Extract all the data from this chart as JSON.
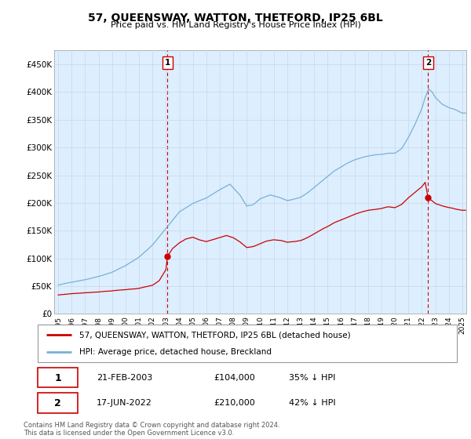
{
  "title": "57, QUEENSWAY, WATTON, THETFORD, IP25 6BL",
  "subtitle": "Price paid vs. HM Land Registry's House Price Index (HPI)",
  "hpi_color": "#7ab0d4",
  "property_color": "#cc0000",
  "marker_color": "#cc0000",
  "ylabel_ticks": [
    0,
    50000,
    100000,
    150000,
    200000,
    250000,
    300000,
    350000,
    400000,
    450000
  ],
  "ylabel_labels": [
    "£0",
    "£50K",
    "£100K",
    "£150K",
    "£200K",
    "£250K",
    "£300K",
    "£350K",
    "£400K",
    "£450K"
  ],
  "xlim_start": 1994.7,
  "xlim_end": 2025.3,
  "ylim_min": 0,
  "ylim_max": 475000,
  "marker1_year": 2003.12,
  "marker1_value": 104000,
  "marker1_label": "1",
  "marker1_date": "21-FEB-2003",
  "marker1_price": "£104,000",
  "marker1_hpi": "35% ↓ HPI",
  "marker2_year": 2022.46,
  "marker2_value": 210000,
  "marker2_label": "2",
  "marker2_date": "17-JUN-2022",
  "marker2_price": "£210,000",
  "marker2_hpi": "42% ↓ HPI",
  "legend_line1": "57, QUEENSWAY, WATTON, THETFORD, IP25 6BL (detached house)",
  "legend_line2": "HPI: Average price, detached house, Breckland",
  "footnote": "Contains HM Land Registry data © Crown copyright and database right 2024.\nThis data is licensed under the Open Government Licence v3.0.",
  "plot_bg_color": "#ddeeff",
  "fig_bg_color": "#ffffff"
}
